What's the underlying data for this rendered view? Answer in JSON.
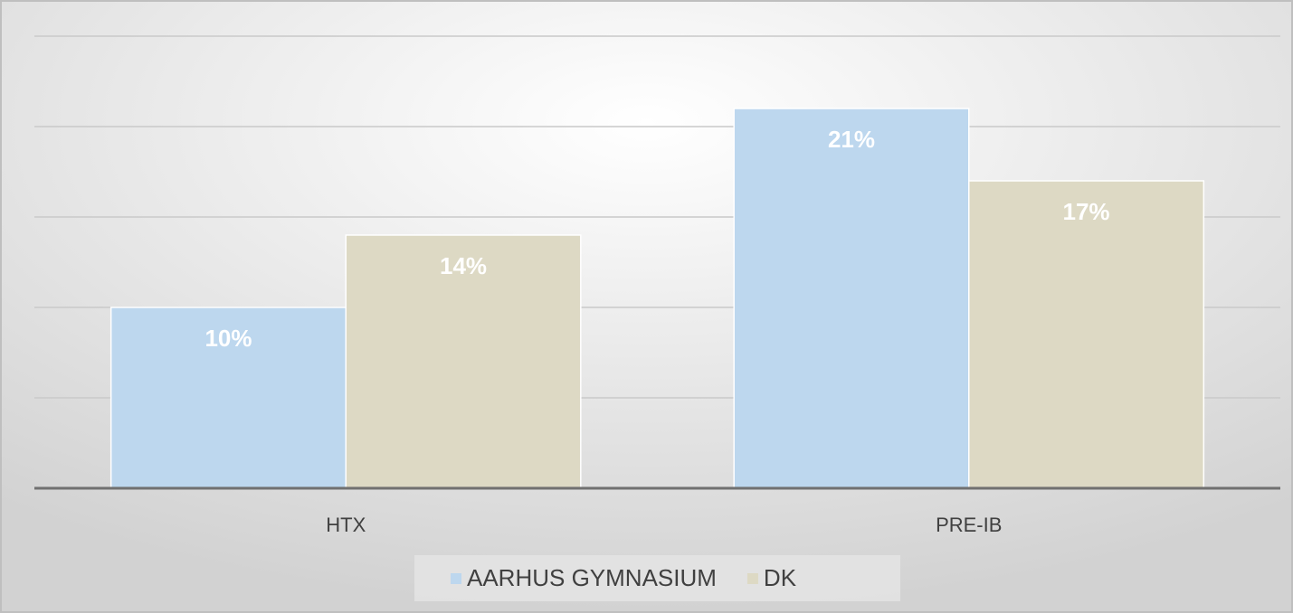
{
  "chart_data": {
    "type": "bar",
    "categories": [
      "HTX",
      "PRE-IB"
    ],
    "series": [
      {
        "name": "AARHUS GYMNASIUM",
        "color": "#bdd7ee",
        "values": [
          10,
          21
        ],
        "value_labels": [
          "10%",
          "21%"
        ]
      },
      {
        "name": "DK",
        "color": "#ddd9c4",
        "values": [
          14,
          17
        ],
        "value_labels": [
          "14%",
          "17%"
        ]
      }
    ],
    "ylim": [
      0,
      25
    ],
    "yticks": [
      0,
      5,
      10,
      15,
      20,
      25
    ],
    "grid": true,
    "legend": "bottom"
  }
}
